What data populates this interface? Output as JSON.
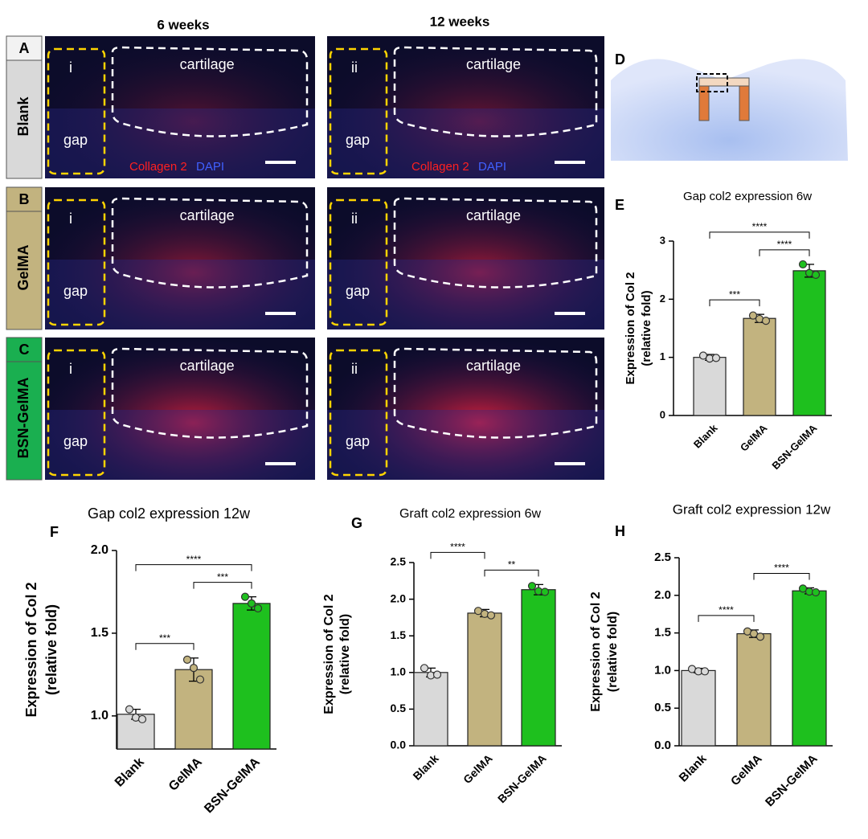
{
  "figure": {
    "column_headers": [
      "6 weeks",
      "12 weeks"
    ],
    "rows": [
      {
        "letter": "A",
        "group": "Blank",
        "color": "#d9d9d9"
      },
      {
        "letter": "B",
        "group": "GelMA",
        "color": "#c2b37f"
      },
      {
        "letter": "C",
        "group": "BSN-GelMA",
        "color": "#1aaf50"
      }
    ],
    "image_labels": {
      "left": "i",
      "right": "ii",
      "region_1": "cartilage",
      "region_2": "gap",
      "stain": "Collagen 2",
      "counterstain": "DAPI"
    },
    "panel_d": "D"
  },
  "chart_data": [
    {
      "panel": "E",
      "type": "bar",
      "title": "Gap col2 expression 6w",
      "ylabel": [
        "Expression of Col 2",
        "(relative fold)"
      ],
      "categories": [
        "Blank",
        "GelMA",
        "BSN-GelMA"
      ],
      "values": [
        1.0,
        1.67,
        2.49
      ],
      "errors": [
        0.05,
        0.07,
        0.11
      ],
      "points": [
        [
          1.03,
          0.98,
          0.99
        ],
        [
          1.72,
          1.66,
          1.63
        ],
        [
          2.6,
          2.45,
          2.42
        ]
      ],
      "colors": [
        "#d9d9d9",
        "#c2b37f",
        "#1ec01e"
      ],
      "ylim": [
        0,
        3
      ],
      "yticks": [
        0,
        1,
        2,
        3
      ],
      "brackets": [
        {
          "between": [
            0,
            1
          ],
          "label": "***"
        },
        {
          "between": [
            1,
            2
          ],
          "label": "****"
        },
        {
          "between": [
            0,
            2
          ],
          "label": "****"
        }
      ]
    },
    {
      "panel": "F",
      "type": "bar",
      "title": "Gap col2 expression 12w",
      "ylabel": [
        "Expression of Col 2",
        "(relative fold)"
      ],
      "categories": [
        "Blank",
        "GelMA",
        "BSN-GelMA"
      ],
      "values": [
        1.01,
        1.28,
        1.68
      ],
      "errors": [
        0.03,
        0.07,
        0.04
      ],
      "points": [
        [
          1.04,
          0.99,
          0.98
        ],
        [
          1.34,
          1.29,
          1.22
        ],
        [
          1.72,
          1.68,
          1.65
        ]
      ],
      "colors": [
        "#d9d9d9",
        "#c2b37f",
        "#1ec01e"
      ],
      "ylim": [
        0.8,
        2.0
      ],
      "yticks": [
        {
          "value": 1.0,
          "label": "1.0"
        },
        {
          "value": 1.5,
          "label": "1.5"
        },
        {
          "value": 2.0,
          "label": "2.0"
        }
      ],
      "brackets": [
        {
          "between": [
            0,
            1
          ],
          "label": "***"
        },
        {
          "between": [
            1,
            2
          ],
          "label": "***"
        },
        {
          "between": [
            0,
            2
          ],
          "label": "****"
        }
      ]
    },
    {
      "panel": "G",
      "type": "bar",
      "title": "Graft col2 expression 6w",
      "ylabel": [
        "Expression of Col 2",
        "(relative fold)"
      ],
      "categories": [
        "Blank",
        "GelMA",
        "BSN-GelMA"
      ],
      "values": [
        1.0,
        1.81,
        2.13
      ],
      "errors": [
        0.06,
        0.05,
        0.07
      ],
      "points": [
        [
          1.06,
          0.96,
          0.97
        ],
        [
          1.84,
          1.8,
          1.78
        ],
        [
          2.18,
          2.11,
          2.1
        ]
      ],
      "colors": [
        "#d9d9d9",
        "#c2b37f",
        "#1ec01e"
      ],
      "ylim": [
        0,
        2.5
      ],
      "yticks": [
        {
          "value": 0,
          "label": "0.0"
        },
        {
          "value": 0.5,
          "label": "0.5"
        },
        {
          "value": 1.0,
          "label": "1.0"
        },
        {
          "value": 1.5,
          "label": "1.5"
        },
        {
          "value": 2.0,
          "label": "2.0"
        },
        {
          "value": 2.5,
          "label": "2.5"
        }
      ],
      "brackets": [
        {
          "between": [
            1,
            2
          ],
          "label": "**"
        },
        {
          "between": [
            0,
            1
          ],
          "label": "****"
        }
      ]
    },
    {
      "panel": "H",
      "type": "bar",
      "title": "Graft col2 expression 12w",
      "ylabel": [
        "Expression of Col 2",
        "(relative fold)"
      ],
      "categories": [
        "Blank",
        "GelMA",
        "BSN-GelMA"
      ],
      "values": [
        1.0,
        1.49,
        2.06
      ],
      "errors": [
        0.03,
        0.05,
        0.04
      ],
      "points": [
        [
          1.02,
          0.99,
          0.99
        ],
        [
          1.52,
          1.49,
          1.45
        ],
        [
          2.09,
          2.05,
          2.04
        ]
      ],
      "colors": [
        "#d9d9d9",
        "#c2b37f",
        "#1ec01e"
      ],
      "ylim": [
        0,
        2.5
      ],
      "yticks": [
        {
          "value": 0,
          "label": "0.0"
        },
        {
          "value": 0.5,
          "label": "0.5"
        },
        {
          "value": 1.0,
          "label": "1.0"
        },
        {
          "value": 1.5,
          "label": "1.5"
        },
        {
          "value": 2.0,
          "label": "2.0"
        },
        {
          "value": 2.5,
          "label": "2.5"
        }
      ],
      "brackets": [
        {
          "between": [
            0,
            1
          ],
          "label": "****"
        },
        {
          "between": [
            1,
            2
          ],
          "label": "****"
        }
      ]
    }
  ]
}
